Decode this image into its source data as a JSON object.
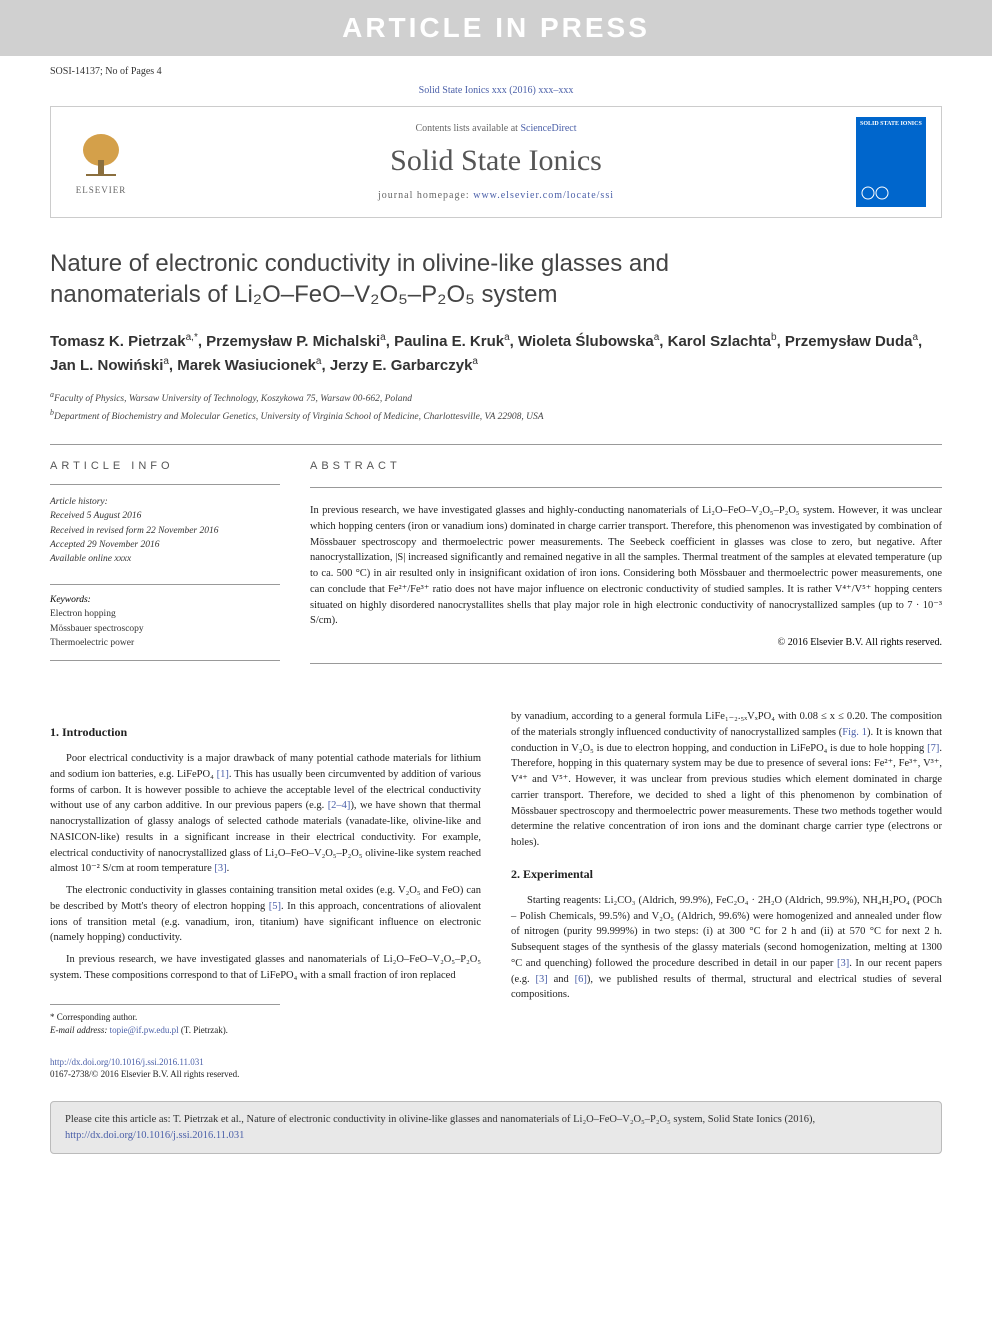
{
  "banner": "ARTICLE IN PRESS",
  "dochead": "SOSI-14137; No of Pages 4",
  "topRef": "Solid State Ionics xxx (2016) xxx–xxx",
  "header": {
    "contentsPrefix": "Contents lists available at ",
    "contentsLink": "ScienceDirect",
    "journalName": "Solid State Ionics",
    "homepagePrefix": "journal homepage: ",
    "homepageUrl": "www.elsevier.com/locate/ssi",
    "elsevier": "ELSEVIER",
    "coverTitle": "SOLID STATE IONICS"
  },
  "title": {
    "line1": "Nature of electronic conductivity in olivine-like glasses and",
    "line2": "nanomaterials of Li₂O–FeO–V₂O₅–P₂O₅ system"
  },
  "authorsHtml": "Tomasz K. Pietrzak<sup>a,*</sup>, Przemysław P. Michalski<sup>a</sup>, Paulina E. Kruk<sup>a</sup>, Wioleta Ślubowska<sup>a</sup>, Karol Szlachta<sup>b</sup>, Przemysław Duda<sup>a</sup>, Jan L. Nowiński<sup>a</sup>, Marek Wasiucionek<sup>a</sup>, Jerzy E. Garbarczyk<sup>a</sup>",
  "affiliations": {
    "a": "Faculty of Physics, Warsaw University of Technology, Koszykowa 75, Warsaw 00-662, Poland",
    "b": "Department of Biochemistry and Molecular Genetics, University of Virginia School of Medicine, Charlottesville, VA 22908, USA"
  },
  "info": {
    "label": "ARTICLE INFO",
    "historyHdr": "Article history:",
    "received": "Received 5 August 2016",
    "revised": "Received in revised form 22 November 2016",
    "accepted": "Accepted 29 November 2016",
    "online": "Available online xxxx",
    "keywordsHdr": "Keywords:",
    "keywords": [
      "Electron hopping",
      "Mössbauer spectroscopy",
      "Thermoelectric power"
    ]
  },
  "abstract": {
    "label": "ABSTRACT",
    "text": "In previous research, we have investigated glasses and highly-conducting nanomaterials of Li₂O–FeO–V₂O₅–P₂O₅ system. However, it was unclear which hopping centers (iron or vanadium ions) dominated in charge carrier transport. Therefore, this phenomenon was investigated by combination of Mössbauer spectroscopy and thermoelectric power measurements. The Seebeck coefficient in glasses was close to zero, but negative. After nanocrystallization, |S| increased significantly and remained negative in all the samples. Thermal treatment of the samples at elevated temperature (up to ca. 500 °C) in air resulted only in insignificant oxidation of iron ions. Considering both Mössbauer and thermoelectric power measurements, one can conclude that Fe²⁺/Fe³⁺ ratio does not have major influence on electronic conductivity of studied samples. It is rather V⁴⁺/V⁵⁺ hopping centers situated on highly disordered nanocrystallites shells that play major role in high electronic conductivity of nanocrystallized samples (up to 7 · 10⁻³ S/cm).",
    "copyright": "© 2016 Elsevier B.V. All rights reserved."
  },
  "sections": {
    "intro": {
      "heading": "1. Introduction",
      "p1a": "Poor electrical conductivity is a major drawback of many potential cathode materials for lithium and sodium ion batteries, e.g. LiFePO₄ ",
      "p1b": ". This has usually been circumvented by addition of various forms of carbon. It is however possible to achieve the acceptable level of the electrical conductivity without use of any carbon additive. In our previous papers (e.g. ",
      "p1c": "), we have shown that thermal nanocrystallization of glassy analogs of selected cathode materials (vanadate-like, olivine-like and NASICON-like) results in a significant increase in their electrical conductivity. For example, electrical conductivity of nanocrystallized glass of Li₂O–FeO–V₂O₅–P₂O₅ olivine-like system reached almost 10⁻² S/cm at room temperature ",
      "p1d": ".",
      "p2a": "The electronic conductivity in glasses containing transition metal oxides (e.g. V₂O₅ and FeO) can be described by Mott's theory of electron hopping ",
      "p2b": ". In this approach, concentrations of aliovalent ions of transition metal (e.g. vanadium, iron, titanium) have significant influence on electronic (namely hopping) conductivity.",
      "p3": "In previous research, we have investigated glasses and nanomaterials of Li₂O–FeO–V₂O₅–P₂O₅ system. These compositions correspond to that of LiFePO₄ with a small fraction of iron replaced",
      "p3cont_a": "by vanadium, according to a general formula LiFe₁₋₂.₅ₓVₓPO₄ with 0.08 ≤ x ≤ 0.20. The composition of the materials strongly influenced conductivity of nanocrystallized samples (",
      "p3cont_b": "). It is known that conduction in V₂O₅ is due to electron hopping, and conduction in LiFePO₄ is due to hole hopping ",
      "p3cont_c": ". Therefore, hopping in this quaternary system may be due to presence of several ions: Fe²⁺, Fe³⁺, V³⁺, V⁴⁺ and V⁵⁺. However, it was unclear from previous studies which element dominated in charge carrier transport. Therefore, we decided to shed a light of this phenomenon by combination of Mössbauer spectroscopy and thermoelectric power measurements. These two methods together would determine the relative concentration of iron ions and the dominant charge carrier type (electrons or holes)."
    },
    "exp": {
      "heading": "2. Experimental",
      "p1a": "Starting reagents: Li₂CO₃ (Aldrich, 99.9%), FeC₂O₄ · 2H₂O (Aldrich, 99.9%), NH₄H₂PO₄ (POCh – Polish Chemicals, 99.5%) and V₂O₅ (Aldrich, 99.6%) were homogenized and annealed under flow of nitrogen (purity 99.999%) in two steps: (i) at 300 °C for 2 h and (ii) at 570 °C for next 2 h. Subsequent stages of the synthesis of the glassy materials (second homogenization, melting at 1300 °C and quenching) followed the procedure described in detail in our paper ",
      "p1b": ". In our recent papers (e.g. ",
      "p1c": " and ",
      "p1d": "), we published results of thermal, structural and electrical studies of several compositions."
    }
  },
  "refs": {
    "r1": "[1]",
    "r2_4": "[2–4]",
    "r3": "[3]",
    "r5": "[5]",
    "r6": "[6]",
    "r7": "[7]",
    "fig1": "Fig. 1"
  },
  "corr": {
    "star": "* Corresponding author.",
    "emailLabel": "E-mail address: ",
    "email": "topie@if.pw.edu.pl",
    "emailSuffix": " (T. Pietrzak)."
  },
  "doiFooter": {
    "doi": "http://dx.doi.org/10.1016/j.ssi.2016.11.031",
    "issn": "0167-2738/© 2016 Elsevier B.V. All rights reserved."
  },
  "citation": {
    "prefix": "Please cite this article as: T. Pietrzak et al., Nature of electronic conductivity in olivine-like glasses and nanomaterials of Li₂O–FeO–V₂O₅–P₂O₅ system, Solid State Ionics (2016), ",
    "url": "http://dx.doi.org/10.1016/j.ssi.2016.11.031"
  }
}
